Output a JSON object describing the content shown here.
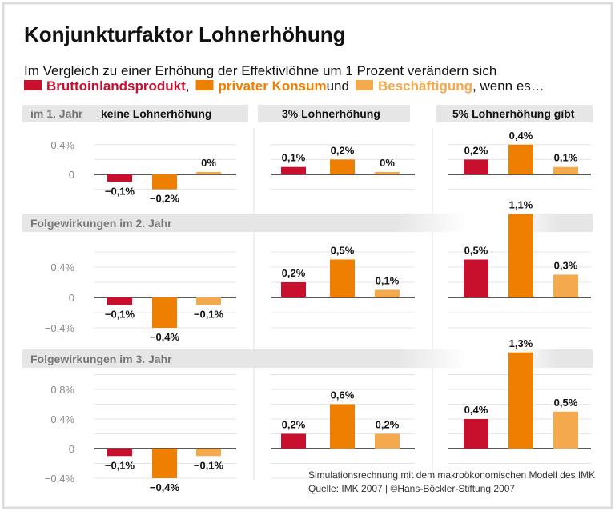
{
  "chart_data": {
    "type": "bar",
    "title": "Konjunkturfaktor Lohnerhöhung",
    "subtitle": "Im Vergleich zu einer Erhöhung der Effektivlöhne um 1 Prozent verändern sich",
    "legend": {
      "items": [
        {
          "name": "Bruttoinlandsprodukt",
          "color": "#c8102e",
          "suffix": ","
        },
        {
          "name": "privater Konsum",
          "color": "#ee7f00",
          "suffix": " und"
        },
        {
          "name": "Beschäftigung",
          "color": "#f5a94d",
          "suffix": ", wenn es…"
        }
      ],
      "placement": "top"
    },
    "columns": [
      "keine Lohnerhöhung",
      "3% Lohnerhöhung",
      "5% Lohnerhöhung gibt"
    ],
    "rows": [
      {
        "label": "im 1. Jahr",
        "yticks": [
          {
            "v": 0.4,
            "label": "0,4%"
          },
          {
            "v": 0,
            "label": "0"
          }
        ],
        "grid": [
          -0.2,
          0,
          0.2,
          0.4
        ],
        "values": [
          [
            -0.1,
            -0.2,
            0
          ],
          [
            0.1,
            0.2,
            0
          ],
          [
            0.2,
            0.4,
            0.1
          ]
        ],
        "labels": [
          [
            "−0,1%",
            "−0,2%",
            "0%"
          ],
          [
            "0,1%",
            "0,2%",
            "0%"
          ],
          [
            "0,2%",
            "0,4%",
            "0,1%"
          ]
        ]
      },
      {
        "label": "Folgewirkungen im 2. Jahr",
        "yticks": [
          {
            "v": 0.4,
            "label": "0,4%"
          },
          {
            "v": 0,
            "label": "0"
          },
          {
            "v": -0.4,
            "label": "−0,4%"
          }
        ],
        "grid": [
          -0.4,
          -0.2,
          0,
          0.2,
          0.4,
          0.6
        ],
        "values": [
          [
            -0.1,
            -0.4,
            -0.1
          ],
          [
            0.2,
            0.5,
            0.1
          ],
          [
            0.5,
            1.1,
            0.3
          ]
        ],
        "labels": [
          [
            "−0,1%",
            "−0,4%",
            "−0,1%"
          ],
          [
            "0,2%",
            "0,5%",
            "0,1%"
          ],
          [
            "0,5%",
            "1,1%",
            "0,3%"
          ]
        ]
      },
      {
        "label": "Folgewirkungen im 3. Jahr",
        "yticks": [
          {
            "v": 0.8,
            "label": "0,8%"
          },
          {
            "v": 0.4,
            "label": "0,4%"
          },
          {
            "v": 0,
            "label": "0"
          },
          {
            "v": -0.4,
            "label": "−0,4%"
          }
        ],
        "grid": [
          -0.4,
          -0.2,
          0,
          0.2,
          0.4,
          0.6,
          0.8,
          1.0
        ],
        "values": [
          [
            -0.1,
            -0.4,
            -0.1
          ],
          [
            0.2,
            0.6,
            0.2
          ],
          [
            0.4,
            1.3,
            0.5
          ]
        ],
        "labels": [
          [
            "−0,1%",
            "−0,4%",
            "−0,1%"
          ],
          [
            "0,2%",
            "0,6%",
            "0,2%"
          ],
          [
            "0,4%",
            "1,3%",
            "0,5%"
          ]
        ]
      }
    ],
    "grid": true,
    "note": "Simulationsrechnung mit dem makroökonomischen Modell des IMK",
    "source": "Quelle: IMK 2007 | ©Hans-Böckler-Stiftung 2007"
  }
}
